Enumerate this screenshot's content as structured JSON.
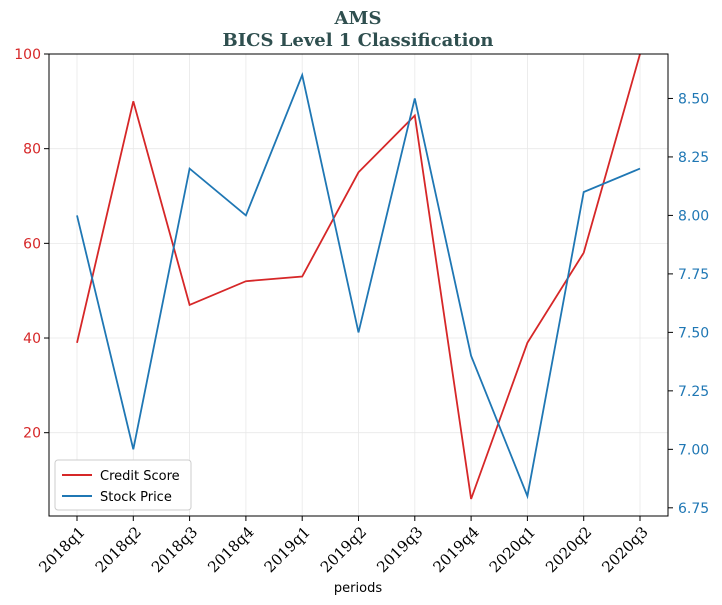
{
  "chart_data": {
    "type": "line",
    "title": "AMS",
    "subtitle": "BICS Level 1 Classification",
    "xlabel": "periods",
    "categories": [
      "2018q1",
      "2018q2",
      "2018q3",
      "2018q4",
      "2019q1",
      "2019q2",
      "2019q3",
      "2019q4",
      "2020q1",
      "2020q2",
      "2020q3"
    ],
    "y_left": {
      "ylim": [
        2.4,
        100
      ],
      "ticks": [
        20,
        40,
        60,
        80,
        100
      ],
      "color": "#d62728"
    },
    "y_right": {
      "ylim": [
        6.715,
        8.69
      ],
      "ticks": [
        "6.75",
        "7.00",
        "7.25",
        "7.50",
        "7.75",
        "8.00",
        "8.25",
        "8.50"
      ],
      "color": "#1f77b4"
    },
    "series": [
      {
        "name": "Credit Score",
        "axis": "left",
        "color": "#d62728",
        "values": [
          39,
          90,
          47,
          52,
          53,
          75,
          87,
          6,
          39,
          58,
          100
        ]
      },
      {
        "name": "Stock Price",
        "axis": "right",
        "color": "#1f77b4",
        "values": [
          8.0,
          7.0,
          8.2,
          8.0,
          8.6,
          7.5,
          8.5,
          7.4,
          6.8,
          8.1,
          8.2
        ]
      }
    ],
    "grid": true,
    "legend_position": "lower-left"
  }
}
